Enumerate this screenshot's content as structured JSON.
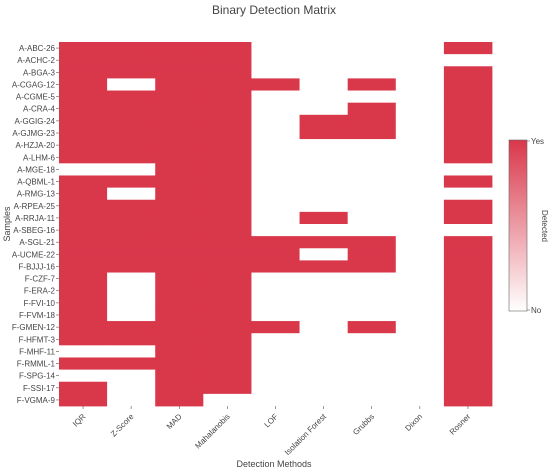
{
  "chart_data": {
    "type": "heatmap",
    "title": "Binary Detection Matrix",
    "xlabel": "Detection Methods",
    "ylabel": "Samples",
    "x": [
      "IQR",
      "Z-Score",
      "MAD",
      "Mahalanobis",
      "LOF",
      "Isolation Forest",
      "Grubbs",
      "Dixon",
      "Rosner"
    ],
    "y": [
      "A-ABC-26",
      "A-ACHC-2",
      "A-BGA-3",
      "A-CGAG-12",
      "A-CGME-5",
      "A-CRA-4",
      "A-GGIG-24",
      "A-GJMG-23",
      "A-HZJA-20",
      "A-LHM-6",
      "A-MGE-18",
      "A-QBML-1",
      "A-RMG-13",
      "A-RPEA-25",
      "A-RRJA-11",
      "A-SBEG-16",
      "A-SGL-21",
      "A-UCME-22",
      "F-BJJJ-16",
      "F-CZF-7",
      "F-ERA-2",
      "F-FVI-10",
      "F-FVM-18",
      "F-GMEN-12",
      "F-HFMT-3",
      "F-MHF-11",
      "F-RMML-1",
      "F-SPG-14",
      "F-SSI-17",
      "F-VGMA-9"
    ],
    "z": [
      [
        1,
        1,
        1,
        1,
        0,
        0,
        0,
        0,
        1
      ],
      [
        1,
        1,
        1,
        1,
        0,
        0,
        0,
        0,
        0
      ],
      [
        1,
        1,
        1,
        1,
        0,
        0,
        0,
        0,
        1
      ],
      [
        1,
        0,
        1,
        1,
        1,
        0,
        1,
        0,
        1
      ],
      [
        1,
        1,
        1,
        1,
        0,
        0,
        0,
        0,
        1
      ],
      [
        1,
        1,
        1,
        1,
        0,
        0,
        1,
        0,
        1
      ],
      [
        1,
        1,
        1,
        1,
        0,
        1,
        1,
        0,
        1
      ],
      [
        1,
        1,
        1,
        1,
        0,
        1,
        1,
        0,
        1
      ],
      [
        1,
        1,
        1,
        1,
        0,
        0,
        0,
        0,
        1
      ],
      [
        1,
        1,
        1,
        1,
        0,
        0,
        0,
        0,
        1
      ],
      [
        0,
        0,
        1,
        1,
        0,
        0,
        0,
        0,
        0
      ],
      [
        1,
        1,
        1,
        1,
        0,
        0,
        0,
        0,
        1
      ],
      [
        1,
        0,
        1,
        1,
        0,
        0,
        0,
        0,
        0
      ],
      [
        1,
        1,
        1,
        1,
        0,
        0,
        0,
        0,
        1
      ],
      [
        1,
        1,
        1,
        1,
        0,
        1,
        0,
        0,
        1
      ],
      [
        1,
        1,
        1,
        1,
        0,
        0,
        0,
        0,
        0
      ],
      [
        1,
        1,
        1,
        1,
        1,
        1,
        1,
        0,
        1
      ],
      [
        1,
        1,
        1,
        1,
        1,
        0,
        1,
        0,
        1
      ],
      [
        1,
        1,
        1,
        1,
        1,
        1,
        1,
        0,
        1
      ],
      [
        1,
        0,
        1,
        1,
        0,
        0,
        0,
        0,
        1
      ],
      [
        1,
        0,
        1,
        1,
        0,
        0,
        0,
        0,
        1
      ],
      [
        1,
        0,
        1,
        1,
        0,
        0,
        0,
        0,
        1
      ],
      [
        1,
        0,
        1,
        1,
        0,
        0,
        0,
        0,
        1
      ],
      [
        1,
        1,
        1,
        1,
        1,
        0,
        1,
        0,
        1
      ],
      [
        1,
        1,
        1,
        1,
        0,
        0,
        0,
        0,
        1
      ],
      [
        0,
        0,
        1,
        1,
        0,
        0,
        0,
        0,
        1
      ],
      [
        1,
        1,
        1,
        1,
        0,
        0,
        0,
        0,
        1
      ],
      [
        0,
        0,
        1,
        1,
        0,
        0,
        0,
        0,
        1
      ],
      [
        1,
        0,
        1,
        1,
        0,
        0,
        0,
        0,
        1
      ],
      [
        1,
        0,
        1,
        0,
        0,
        0,
        0,
        0,
        1
      ]
    ],
    "colorbar": {
      "title": "Detected",
      "max_label": "Yes",
      "min_label": "No"
    },
    "colors": {
      "detected": "#d9374a",
      "not_detected": "#ffffff"
    }
  }
}
